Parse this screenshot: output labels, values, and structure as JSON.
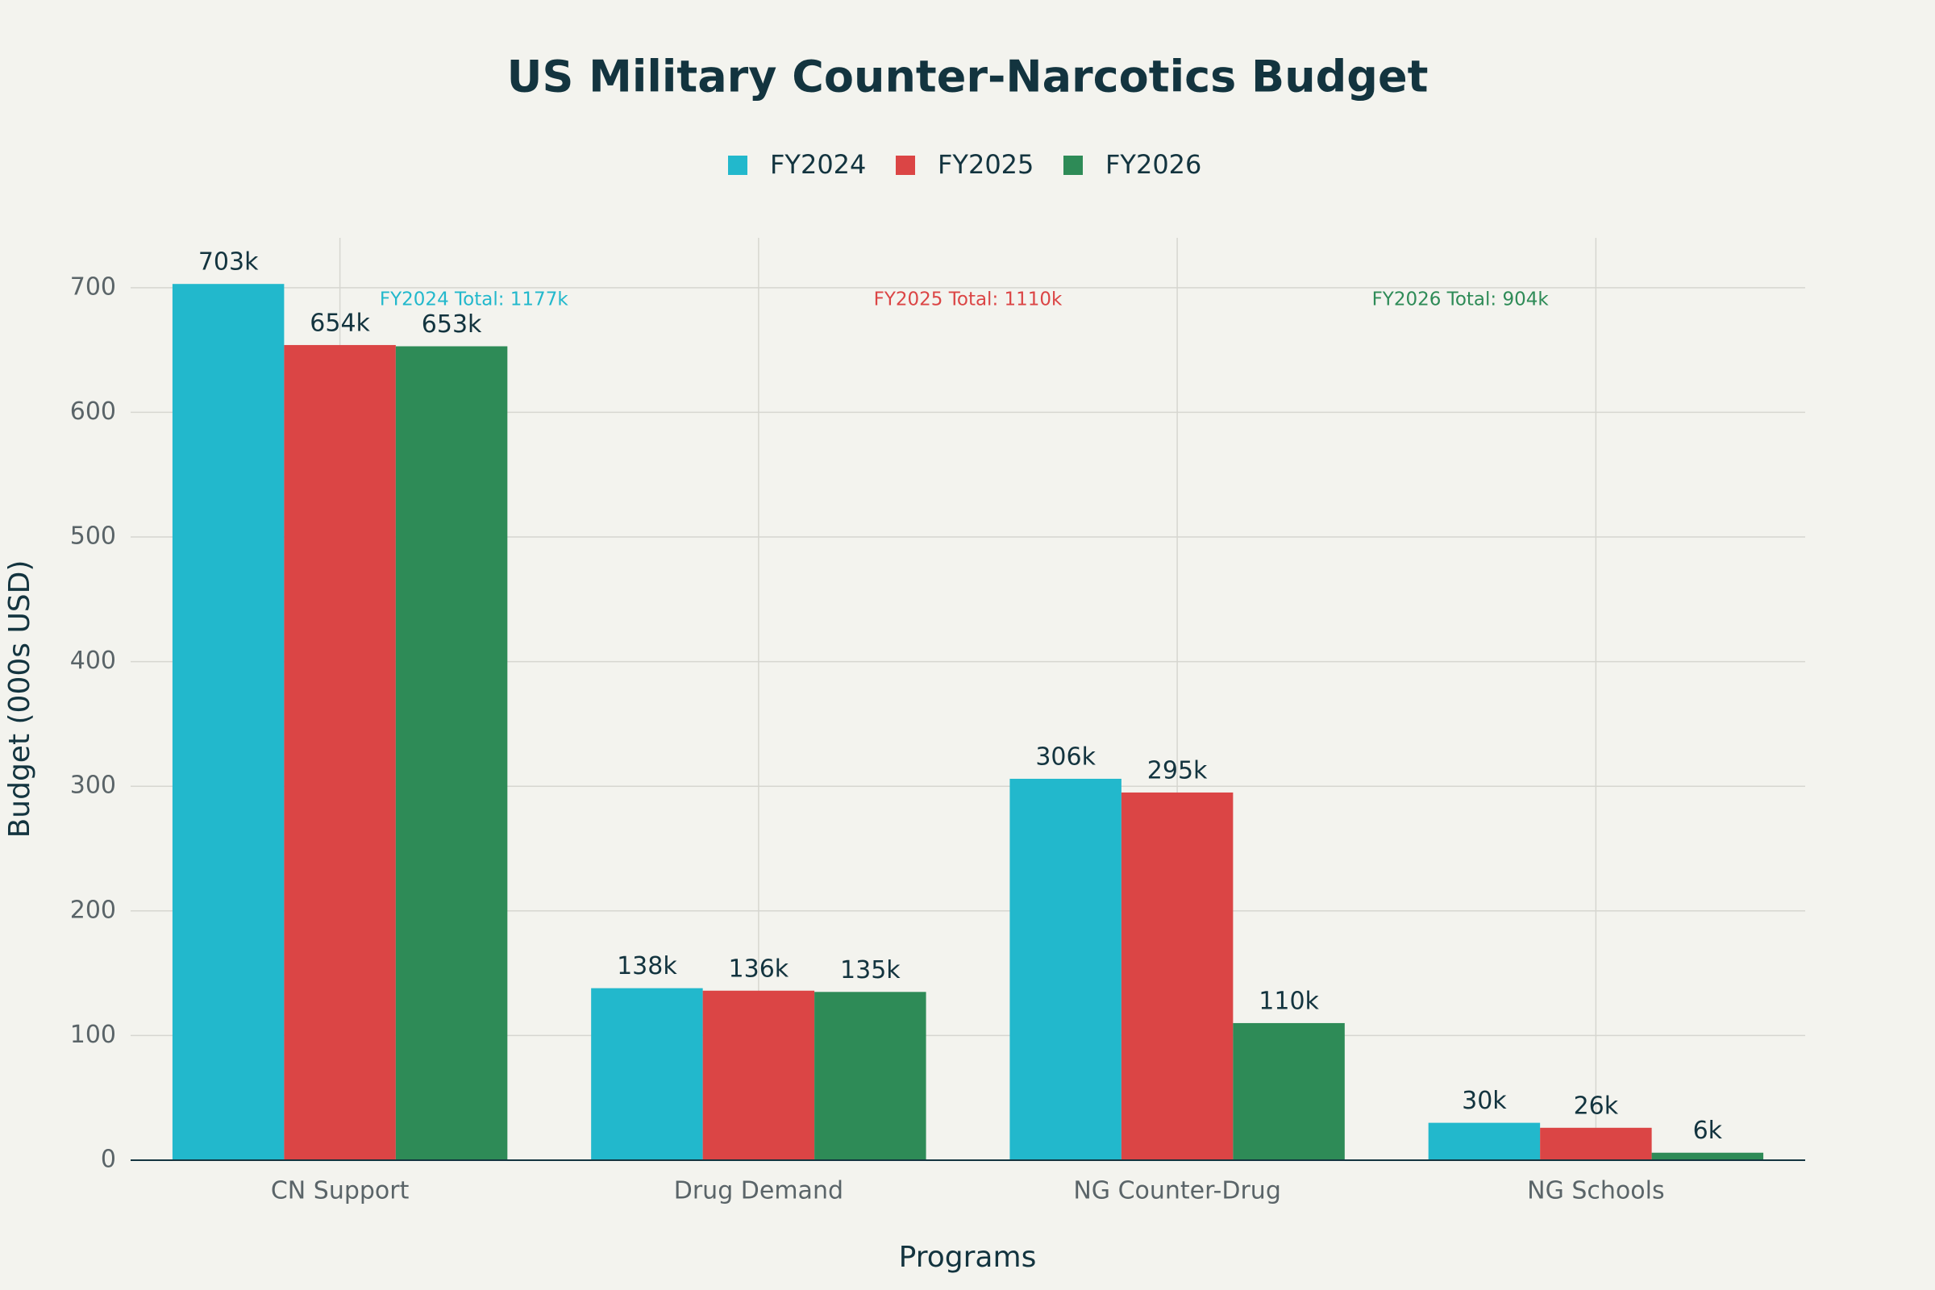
{
  "chart_data": {
    "type": "bar",
    "title": "US Military Counter-Narcotics Budget",
    "x_label": "Programs",
    "y_label": "Budget (000s USD)",
    "categories": [
      "CN Support",
      "Drug Demand",
      "NG Counter-Drug",
      "NG Schools"
    ],
    "series": [
      {
        "name": "FY2024",
        "color": "#22b8cc",
        "values": [
          703,
          138,
          306,
          30
        ],
        "value_labels": [
          "703k",
          "138k",
          "306k",
          "30k"
        ]
      },
      {
        "name": "FY2025",
        "color": "#db4545",
        "values": [
          654,
          136,
          295,
          26
        ],
        "value_labels": [
          "654k",
          "136k",
          "295k",
          "26k"
        ]
      },
      {
        "name": "FY2026",
        "color": "#2e8b57",
        "values": [
          653,
          135,
          110,
          6
        ],
        "value_labels": [
          "653k",
          "135k",
          "110k",
          "6k"
        ]
      }
    ],
    "annotations": [
      {
        "text": "FY2024 Total: 1177k",
        "color": "#22b8cc"
      },
      {
        "text": "FY2025 Total: 1110k",
        "color": "#db4545"
      },
      {
        "text": "FY2026 Total: 904k",
        "color": "#2e8b57"
      }
    ],
    "ylim": [
      0,
      740
    ],
    "yticks": [
      0,
      100,
      200,
      300,
      400,
      500,
      600,
      700
    ],
    "grid": true,
    "legend": "top"
  }
}
